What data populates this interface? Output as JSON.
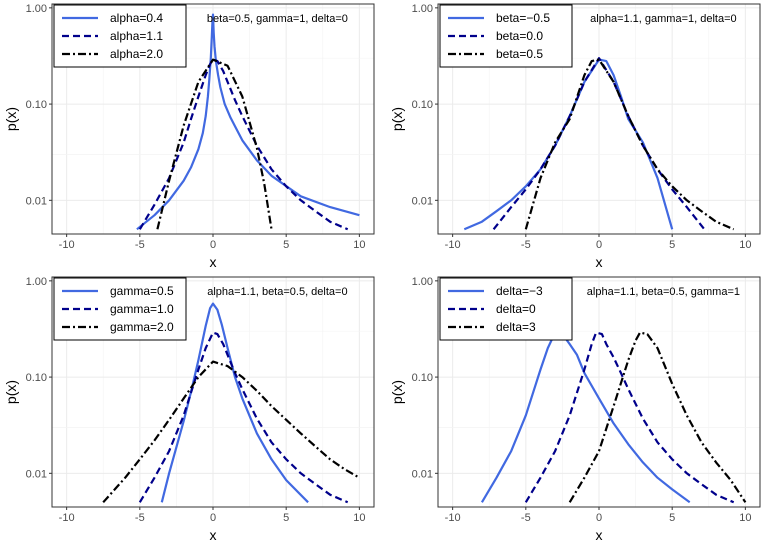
{
  "chart_data": [
    {
      "type": "line",
      "title": "",
      "annotation": "beta=0.5, gamma=1, delta=0",
      "xlabel": "x",
      "ylabel": "p(x)",
      "xlim": [
        -11,
        11
      ],
      "ylim_log10": [
        -2.35,
        0.04
      ],
      "xticks": [
        -10,
        -5,
        0,
        5,
        10
      ],
      "xtick_labels": [
        "-10",
        "-5",
        "0",
        "5",
        "10"
      ],
      "yticks": [
        0.01,
        0.1,
        1
      ],
      "ytick_labels": [
        "0.01",
        "0.10",
        "1.00"
      ],
      "grid": true,
      "legend": "top-left",
      "series": [
        {
          "name": "alpha=0.4",
          "style": "solid",
          "color": "#4169e1",
          "x": [
            -5.2,
            -4,
            -3,
            -2,
            -1.5,
            -1,
            -0.7,
            -0.5,
            -0.35,
            -0.25,
            -0.15,
            -0.08,
            -0.04,
            0,
            0.05,
            0.1,
            0.2,
            0.35,
            0.5,
            0.8,
            1.2,
            2,
            3,
            4,
            6,
            8,
            10
          ],
          "y": [
            0.005,
            0.007,
            0.01,
            0.016,
            0.022,
            0.034,
            0.05,
            0.075,
            0.12,
            0.18,
            0.3,
            0.5,
            0.7,
            0.85,
            0.55,
            0.4,
            0.28,
            0.2,
            0.15,
            0.1,
            0.072,
            0.042,
            0.026,
            0.018,
            0.011,
            0.0085,
            0.007
          ]
        },
        {
          "name": "alpha=1.1",
          "style": "dashed",
          "color": "#00008b",
          "x": [
            -5,
            -4,
            -3,
            -2,
            -1.5,
            -1,
            -0.5,
            -0.2,
            0,
            0.3,
            0.7,
            1,
            1.5,
            2,
            3,
            4,
            5,
            6,
            7,
            8,
            9.2
          ],
          "y": [
            0.005,
            0.009,
            0.017,
            0.04,
            0.07,
            0.12,
            0.2,
            0.26,
            0.29,
            0.28,
            0.22,
            0.17,
            0.11,
            0.075,
            0.037,
            0.021,
            0.014,
            0.01,
            0.0077,
            0.006,
            0.005
          ]
        },
        {
          "name": "alpha=2.0",
          "style": "dotdash",
          "color": "#000000",
          "x": [
            -3.8,
            -3,
            -2,
            -1,
            0,
            1,
            2,
            3,
            3.5,
            4
          ],
          "y": [
            0.005,
            0.016,
            0.06,
            0.17,
            0.29,
            0.25,
            0.12,
            0.035,
            0.015,
            0.005
          ]
        }
      ]
    },
    {
      "type": "line",
      "title": "",
      "annotation": "alpha=1.1, gamma=1, delta=0",
      "xlabel": "x",
      "ylabel": "p(x)",
      "xlim": [
        -11,
        11
      ],
      "ylim_log10": [
        -2.35,
        0.04
      ],
      "xticks": [
        -10,
        -5,
        0,
        5,
        10
      ],
      "xtick_labels": [
        "-10",
        "-5",
        "0",
        "5",
        "10"
      ],
      "yticks": [
        0.01,
        0.1,
        1
      ],
      "ytick_labels": [
        "0.01",
        "0.10",
        "1.00"
      ],
      "grid": true,
      "legend": "top-left",
      "series": [
        {
          "name": "beta=−0.5",
          "style": "solid",
          "color": "#4169e1",
          "x": [
            -9.2,
            -8,
            -7,
            -6,
            -5,
            -4,
            -3,
            -2,
            -1,
            0,
            0.5,
            1,
            1.5,
            2,
            3,
            4,
            5
          ],
          "y": [
            0.005,
            0.006,
            0.0077,
            0.01,
            0.014,
            0.021,
            0.037,
            0.075,
            0.17,
            0.29,
            0.28,
            0.2,
            0.12,
            0.07,
            0.04,
            0.017,
            0.005
          ]
        },
        {
          "name": "beta=0.0",
          "style": "dashed",
          "color": "#00008b",
          "x": [
            -7.2,
            -6,
            -5,
            -4,
            -3,
            -2,
            -1,
            0,
            1,
            2,
            3,
            4,
            5,
            6,
            7.2
          ],
          "y": [
            0.005,
            0.0085,
            0.013,
            0.021,
            0.037,
            0.075,
            0.17,
            0.3,
            0.17,
            0.075,
            0.037,
            0.021,
            0.013,
            0.0085,
            0.005
          ]
        },
        {
          "name": "beta=0.5",
          "style": "dotdash",
          "color": "#000000",
          "x": [
            -5,
            -4,
            -3,
            -2,
            -1,
            -0.5,
            0,
            1,
            2,
            3,
            4,
            5,
            6,
            7,
            8,
            9.2
          ],
          "y": [
            0.005,
            0.017,
            0.04,
            0.07,
            0.2,
            0.28,
            0.29,
            0.17,
            0.075,
            0.037,
            0.021,
            0.014,
            0.01,
            0.0077,
            0.006,
            0.005
          ]
        }
      ]
    },
    {
      "type": "line",
      "title": "",
      "annotation": "alpha=1.1, beta=0.5, delta=0",
      "xlabel": "x",
      "ylabel": "p(x)",
      "xlim": [
        -11,
        11
      ],
      "ylim_log10": [
        -2.35,
        0.04
      ],
      "xticks": [
        -10,
        -5,
        0,
        5,
        10
      ],
      "xtick_labels": [
        "-10",
        "-5",
        "0",
        "5",
        "10"
      ],
      "yticks": [
        0.01,
        0.1,
        1
      ],
      "ytick_labels": [
        "0.01",
        "0.10",
        "1.00"
      ],
      "grid": true,
      "legend": "top-left",
      "series": [
        {
          "name": "gamma=0.5",
          "style": "solid",
          "color": "#4169e1",
          "x": [
            -3.5,
            -3,
            -2,
            -1.5,
            -1,
            -0.5,
            -0.2,
            0,
            0.3,
            0.6,
            1,
            1.5,
            2,
            3,
            4,
            5,
            6.5
          ],
          "y": [
            0.005,
            0.01,
            0.035,
            0.07,
            0.15,
            0.34,
            0.52,
            0.58,
            0.5,
            0.35,
            0.2,
            0.1,
            0.06,
            0.026,
            0.014,
            0.0085,
            0.005
          ]
        },
        {
          "name": "gamma=1.0",
          "style": "dashed",
          "color": "#00008b",
          "x": [
            -5,
            -4,
            -3,
            -2,
            -1,
            -0.5,
            0,
            0.3,
            0.7,
            1,
            1.5,
            2,
            3,
            4,
            5,
            6,
            7,
            8,
            9.2
          ],
          "y": [
            0.005,
            0.009,
            0.017,
            0.04,
            0.12,
            0.2,
            0.29,
            0.28,
            0.22,
            0.17,
            0.11,
            0.075,
            0.037,
            0.021,
            0.014,
            0.01,
            0.0077,
            0.006,
            0.005
          ]
        },
        {
          "name": "gamma=2.0",
          "style": "dotdash",
          "color": "#000000",
          "x": [
            -7.5,
            -6,
            -5,
            -4,
            -3,
            -2,
            -1,
            0,
            1,
            2,
            3,
            4,
            5,
            6,
            7,
            8,
            9,
            10
          ],
          "y": [
            0.005,
            0.009,
            0.014,
            0.022,
            0.036,
            0.06,
            0.1,
            0.145,
            0.13,
            0.1,
            0.072,
            0.05,
            0.036,
            0.026,
            0.019,
            0.014,
            0.011,
            0.009
          ]
        }
      ]
    },
    {
      "type": "line",
      "title": "",
      "annotation": "alpha=1.1, beta=0.5, gamma=1",
      "xlabel": "x",
      "ylabel": "p(x)",
      "xlim": [
        -11,
        11
      ],
      "ylim_log10": [
        -2.35,
        0.04
      ],
      "xticks": [
        -10,
        -5,
        0,
        5,
        10
      ],
      "xtick_labels": [
        "-10",
        "-5",
        "0",
        "5",
        "10"
      ],
      "yticks": [
        0.01,
        0.1,
        1
      ],
      "ytick_labels": [
        "0.01",
        "0.10",
        "1.00"
      ],
      "grid": true,
      "legend": "top-left",
      "series": [
        {
          "name": "delta=−3",
          "style": "solid",
          "color": "#4169e1",
          "x": [
            -8,
            -7,
            -6,
            -5,
            -4,
            -3.5,
            -3,
            -2.5,
            -2,
            -1.5,
            -1,
            0,
            1,
            2,
            3,
            4,
            5,
            6.2
          ],
          "y": [
            0.005,
            0.009,
            0.017,
            0.04,
            0.12,
            0.2,
            0.29,
            0.28,
            0.22,
            0.17,
            0.11,
            0.06,
            0.033,
            0.02,
            0.013,
            0.009,
            0.0068,
            0.005
          ]
        },
        {
          "name": "delta=0",
          "style": "dashed",
          "color": "#00008b",
          "x": [
            -5,
            -4,
            -3,
            -2,
            -1,
            -0.5,
            -0.2,
            0.2,
            0.5,
            1,
            1.5,
            2,
            3,
            4,
            5,
            6,
            7,
            8,
            9.2
          ],
          "y": [
            0.005,
            0.009,
            0.017,
            0.04,
            0.12,
            0.22,
            0.29,
            0.28,
            0.22,
            0.16,
            0.11,
            0.075,
            0.037,
            0.021,
            0.014,
            0.01,
            0.0077,
            0.006,
            0.005
          ]
        },
        {
          "name": "delta=3",
          "style": "dotdash",
          "color": "#000000",
          "x": [
            -2,
            -1,
            0,
            1,
            2,
            2.5,
            2.8,
            3.3,
            4,
            5,
            6,
            7,
            8,
            9,
            10
          ],
          "y": [
            0.005,
            0.009,
            0.017,
            0.05,
            0.15,
            0.24,
            0.29,
            0.28,
            0.2,
            0.085,
            0.04,
            0.021,
            0.013,
            0.0085,
            0.005
          ]
        }
      ]
    }
  ]
}
